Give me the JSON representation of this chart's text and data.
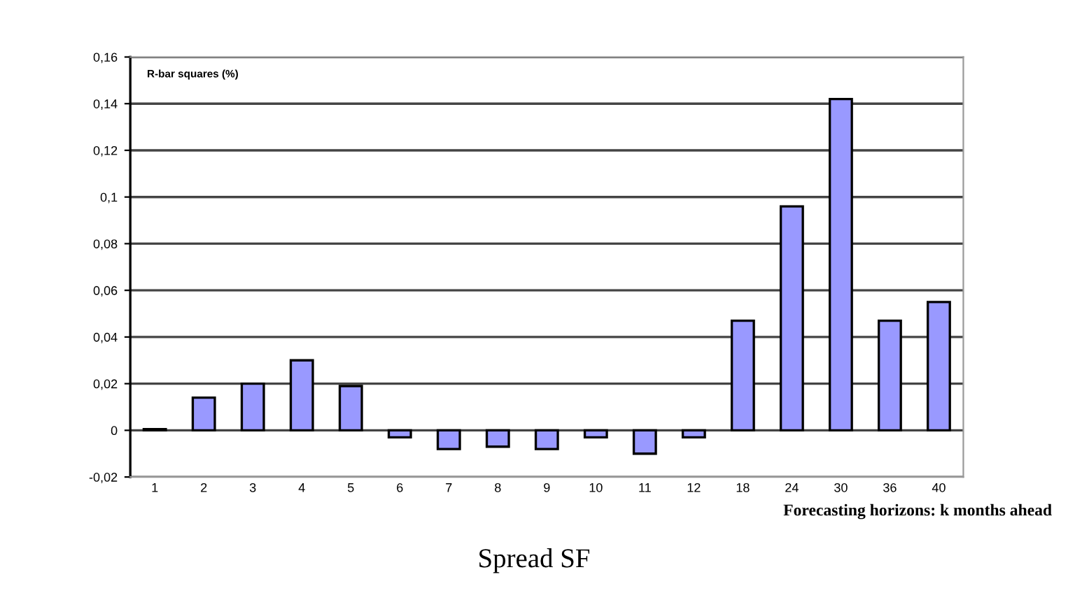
{
  "chart_data": {
    "type": "bar",
    "title": "Spread SF",
    "ylabel": "R-bar squares (%)",
    "xlabel": "Forecasting horizons: k months ahead",
    "categories": [
      "1",
      "2",
      "3",
      "4",
      "5",
      "6",
      "7",
      "8",
      "9",
      "10",
      "11",
      "12",
      "18",
      "24",
      "30",
      "36",
      "40"
    ],
    "values": [
      0.0005,
      0.014,
      0.02,
      0.03,
      0.019,
      -0.003,
      -0.008,
      -0.007,
      -0.008,
      -0.003,
      -0.01,
      -0.003,
      0.047,
      0.096,
      0.142,
      0.047,
      0.055
    ],
    "color": "#9999ff",
    "ylim": [
      -0.02,
      0.16
    ],
    "yticks": [
      {
        "value": -0.02,
        "label": "-0,02"
      },
      {
        "value": 0,
        "label": "0"
      },
      {
        "value": 0.02,
        "label": "0,02"
      },
      {
        "value": 0.04,
        "label": "0,04"
      },
      {
        "value": 0.06,
        "label": "0,06"
      },
      {
        "value": 0.08,
        "label": "0,08"
      },
      {
        "value": 0.1,
        "label": "0,1"
      },
      {
        "value": 0.12,
        "label": "0,12"
      },
      {
        "value": 0.14,
        "label": "0,14"
      },
      {
        "value": 0.16,
        "label": "0,16"
      }
    ],
    "grid": "y",
    "legend": false
  }
}
